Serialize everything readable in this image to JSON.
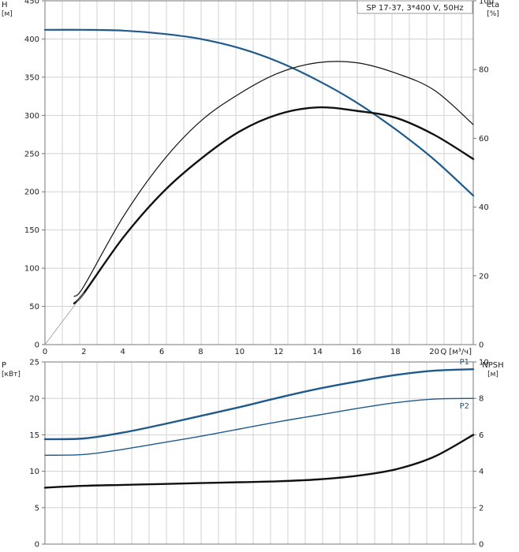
{
  "chart_data": [
    {
      "type": "line",
      "title": "SP 17-37, 3*400 V, 50Hz",
      "xlabel": "Q [м³/ч]",
      "x_ticks": [
        "0",
        "2",
        "4",
        "6",
        "8",
        "10",
        "12",
        "14",
        "16",
        "18",
        "20"
      ],
      "xlim": [
        0,
        22
      ],
      "left_axis": {
        "label": "H",
        "unit": "[м]",
        "ylim": [
          0,
          450
        ],
        "ticks": [
          "0",
          "50",
          "100",
          "150",
          "200",
          "250",
          "300",
          "350",
          "400",
          "450"
        ]
      },
      "right_axis": {
        "label": "eta",
        "unit": "[%]",
        "ylim": [
          0,
          100
        ],
        "ticks": [
          "0",
          "20",
          "40",
          "60",
          "80",
          "100"
        ]
      },
      "grid": true,
      "series": [
        {
          "axis": "left",
          "color": "#1f5a8c",
          "width": 2.2,
          "x": [
            0,
            2,
            4,
            6,
            8,
            10,
            12,
            14,
            16,
            18,
            20,
            22
          ],
          "y": [
            412,
            412,
            411,
            407,
            400,
            388,
            370,
            346,
            317,
            282,
            242,
            195
          ]
        },
        {
          "axis": "right",
          "color": "#111111",
          "width": 1.2,
          "x": [
            1.5,
            2,
            4,
            6,
            8,
            10,
            12,
            14,
            16,
            18,
            20,
            22
          ],
          "y": [
            14,
            17,
            37,
            53,
            65,
            73,
            79,
            82,
            82,
            79,
            74,
            64
          ]
        },
        {
          "axis": "right",
          "color": "#111111",
          "width": 2.4,
          "x": [
            1.5,
            2,
            4,
            6,
            8,
            10,
            12,
            14,
            16,
            18,
            20,
            22
          ],
          "y": [
            12,
            15,
            31,
            44,
            54,
            62,
            67,
            69,
            68,
            66,
            61,
            54
          ]
        },
        {
          "axis": "right",
          "color": "#999999",
          "width": 0.8,
          "x": [
            0,
            2
          ],
          "y": [
            0,
            15
          ]
        }
      ]
    },
    {
      "type": "line",
      "xlabel": "",
      "x_ticks": [],
      "xlim": [
        0,
        22
      ],
      "left_axis": {
        "label": "P",
        "unit": "[кВт]",
        "ylim": [
          0,
          25
        ],
        "ticks": [
          "0",
          "5",
          "10",
          "15",
          "20",
          "25"
        ]
      },
      "right_axis": {
        "label": "NPSH",
        "unit": "[м]",
        "ylim": [
          0,
          10
        ],
        "ticks": [
          "0",
          "2",
          "4",
          "6",
          "8",
          "10"
        ]
      },
      "grid": true,
      "series": [
        {
          "name": "P1",
          "axis": "left",
          "color": "#1f5a8c",
          "width": 2.4,
          "x": [
            0,
            2,
            4,
            6,
            8,
            10,
            12,
            14,
            16,
            18,
            20,
            22
          ],
          "y": [
            14.4,
            14.5,
            15.3,
            16.4,
            17.6,
            18.8,
            20.1,
            21.3,
            22.3,
            23.2,
            23.8,
            24.0
          ]
        },
        {
          "name": "P2",
          "axis": "left",
          "color": "#1f5a8c",
          "width": 1.4,
          "x": [
            0,
            2,
            4,
            6,
            8,
            10,
            12,
            14,
            16,
            18,
            20,
            22
          ],
          "y": [
            12.2,
            12.3,
            13.0,
            13.9,
            14.8,
            15.8,
            16.8,
            17.7,
            18.6,
            19.4,
            19.9,
            20.0
          ]
        },
        {
          "axis": "right",
          "color": "#111111",
          "width": 2.4,
          "x": [
            0,
            2,
            4,
            6,
            8,
            10,
            12,
            14,
            16,
            18,
            20,
            22
          ],
          "y": [
            3.1,
            3.2,
            3.25,
            3.3,
            3.35,
            3.4,
            3.45,
            3.55,
            3.75,
            4.1,
            4.8,
            6.0
          ]
        }
      ]
    }
  ]
}
